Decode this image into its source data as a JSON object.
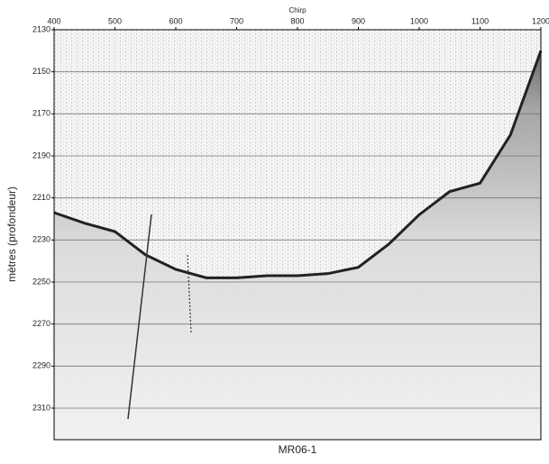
{
  "chart_data": {
    "type": "line",
    "title": "MR06-1",
    "x_label": "Chirp",
    "y_label": "mètres (profondeur)",
    "x": [
      400,
      450,
      500,
      550,
      600,
      650,
      700,
      750,
      800,
      850,
      900,
      950,
      1000,
      1050,
      1100,
      1150,
      1200
    ],
    "values": [
      2217,
      2222,
      2226,
      2237,
      2244,
      2248,
      2248,
      2247,
      2247,
      2246,
      2243,
      2232,
      2218,
      2207,
      2203,
      2180,
      2140
    ],
    "color": "#222222",
    "xlim": [
      400,
      1200
    ],
    "xticks": [
      400,
      500,
      600,
      700,
      800,
      900,
      1000,
      1100,
      1200
    ],
    "ylim": [
      2130,
      2325
    ],
    "yticks": [
      2130,
      2150,
      2170,
      2190,
      2210,
      2230,
      2250,
      2270,
      2290,
      2310
    ],
    "y_inverted": true,
    "grid": true
  }
}
